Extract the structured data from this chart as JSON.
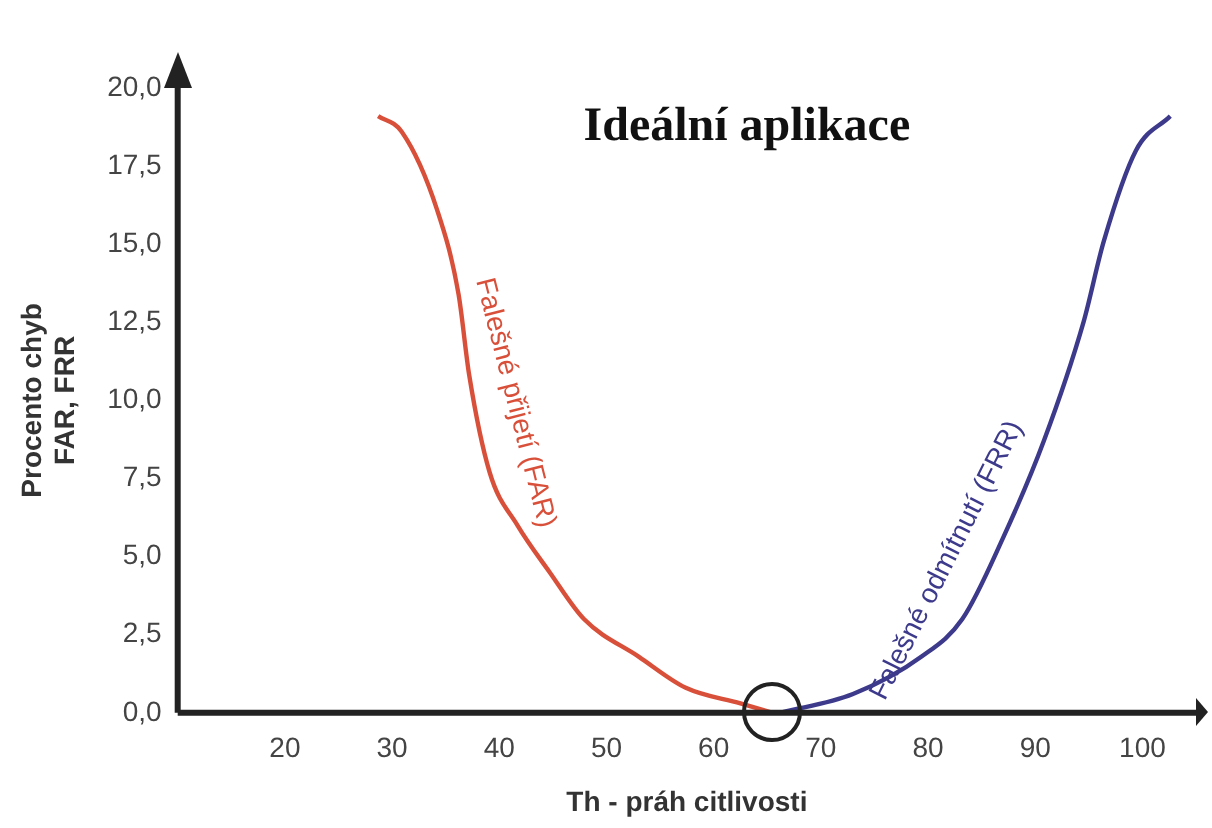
{
  "chart_data": {
    "type": "line",
    "title": "Ideální aplikace",
    "xlabel": "Th - práh citlivosti",
    "ylabel": "Procento chyb\nFAR, FRR",
    "xlim": [
      10,
      105
    ],
    "xticks": [
      20,
      30,
      40,
      50,
      60,
      70,
      80,
      90,
      100
    ],
    "ylim": [
      0,
      20
    ],
    "yticks": [
      {
        "value": 0,
        "label": "0,0"
      },
      {
        "value": 2.5,
        "label": "2,5"
      },
      {
        "value": 5,
        "label": "5,0"
      },
      {
        "value": 7.5,
        "label": "7,5"
      },
      {
        "value": 10,
        "label": "10,0"
      },
      {
        "value": 12.5,
        "label": "12,5"
      },
      {
        "value": 15,
        "label": "15,0"
      },
      {
        "value": 17.5,
        "label": "17,5"
      },
      {
        "value": 20,
        "label": "20,0"
      }
    ],
    "grid": false,
    "legend": false,
    "marker": "none",
    "line_style": "solid",
    "series": [
      {
        "name": "Falešné přijetí (FAR)",
        "color": "#d9503a",
        "x": [
          28.7,
          30.9,
          34.2,
          36.2,
          37.2,
          39.1,
          41.7,
          44.7,
          47.9,
          53,
          57.4,
          62.5,
          65.5
        ],
        "values": [
          19.1,
          18.6,
          16.1,
          13.4,
          10.8,
          7.7,
          6.0,
          4.5,
          3.0,
          1.8,
          0.8,
          0.3,
          0
        ]
      },
      {
        "name": "Falešné odmítnutí (FRR)",
        "color": "#3d3a8c",
        "x": [
          66.2,
          73,
          79.4,
          83.2,
          87,
          90.8,
          94.5,
          96.4,
          99.4,
          102.6
        ],
        "values": [
          0,
          0.6,
          1.8,
          3.0,
          5.6,
          8.7,
          12.5,
          15.1,
          18.0,
          19.1
        ]
      }
    ]
  }
}
